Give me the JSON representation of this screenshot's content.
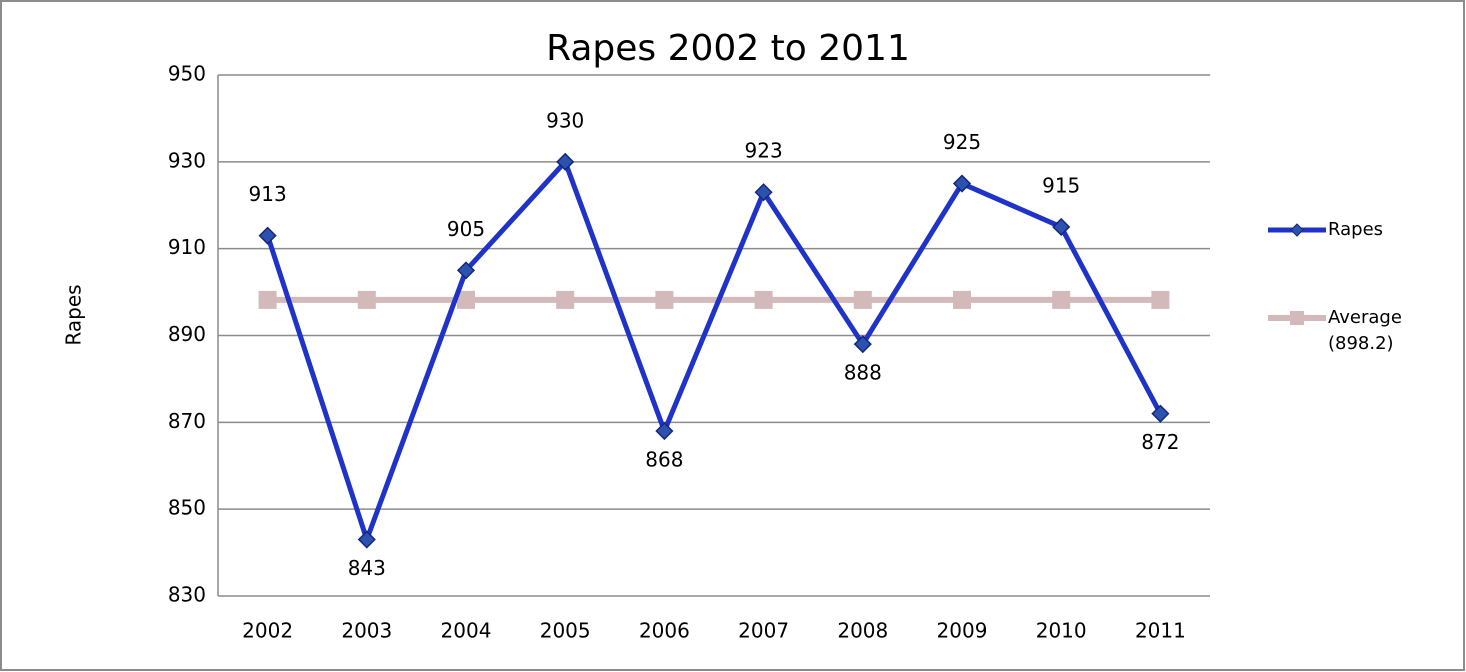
{
  "chart_data": {
    "type": "line",
    "title": "Rapes 2002 to 2011",
    "y_label": "Rapes",
    "categories": [
      "2002",
      "2003",
      "2004",
      "2005",
      "2006",
      "2007",
      "2008",
      "2009",
      "2010",
      "2011"
    ],
    "series": [
      {
        "name": "Rapes",
        "color": "#1f33c9",
        "marker": "diamond",
        "data_labels": true,
        "values": [
          913,
          843,
          905,
          930,
          868,
          923,
          888,
          925,
          915,
          872
        ]
      },
      {
        "name": "Average (898.2)",
        "color": "#d3b9b9",
        "marker": "square",
        "data_labels": false,
        "values": [
          898.2,
          898.2,
          898.2,
          898.2,
          898.2,
          898.2,
          898.2,
          898.2,
          898.2,
          898.2
        ]
      }
    ],
    "ylim": [
      830,
      950
    ],
    "yticks": [
      830,
      850,
      870,
      890,
      910,
      930,
      950
    ],
    "grid": true,
    "legend": "right"
  }
}
